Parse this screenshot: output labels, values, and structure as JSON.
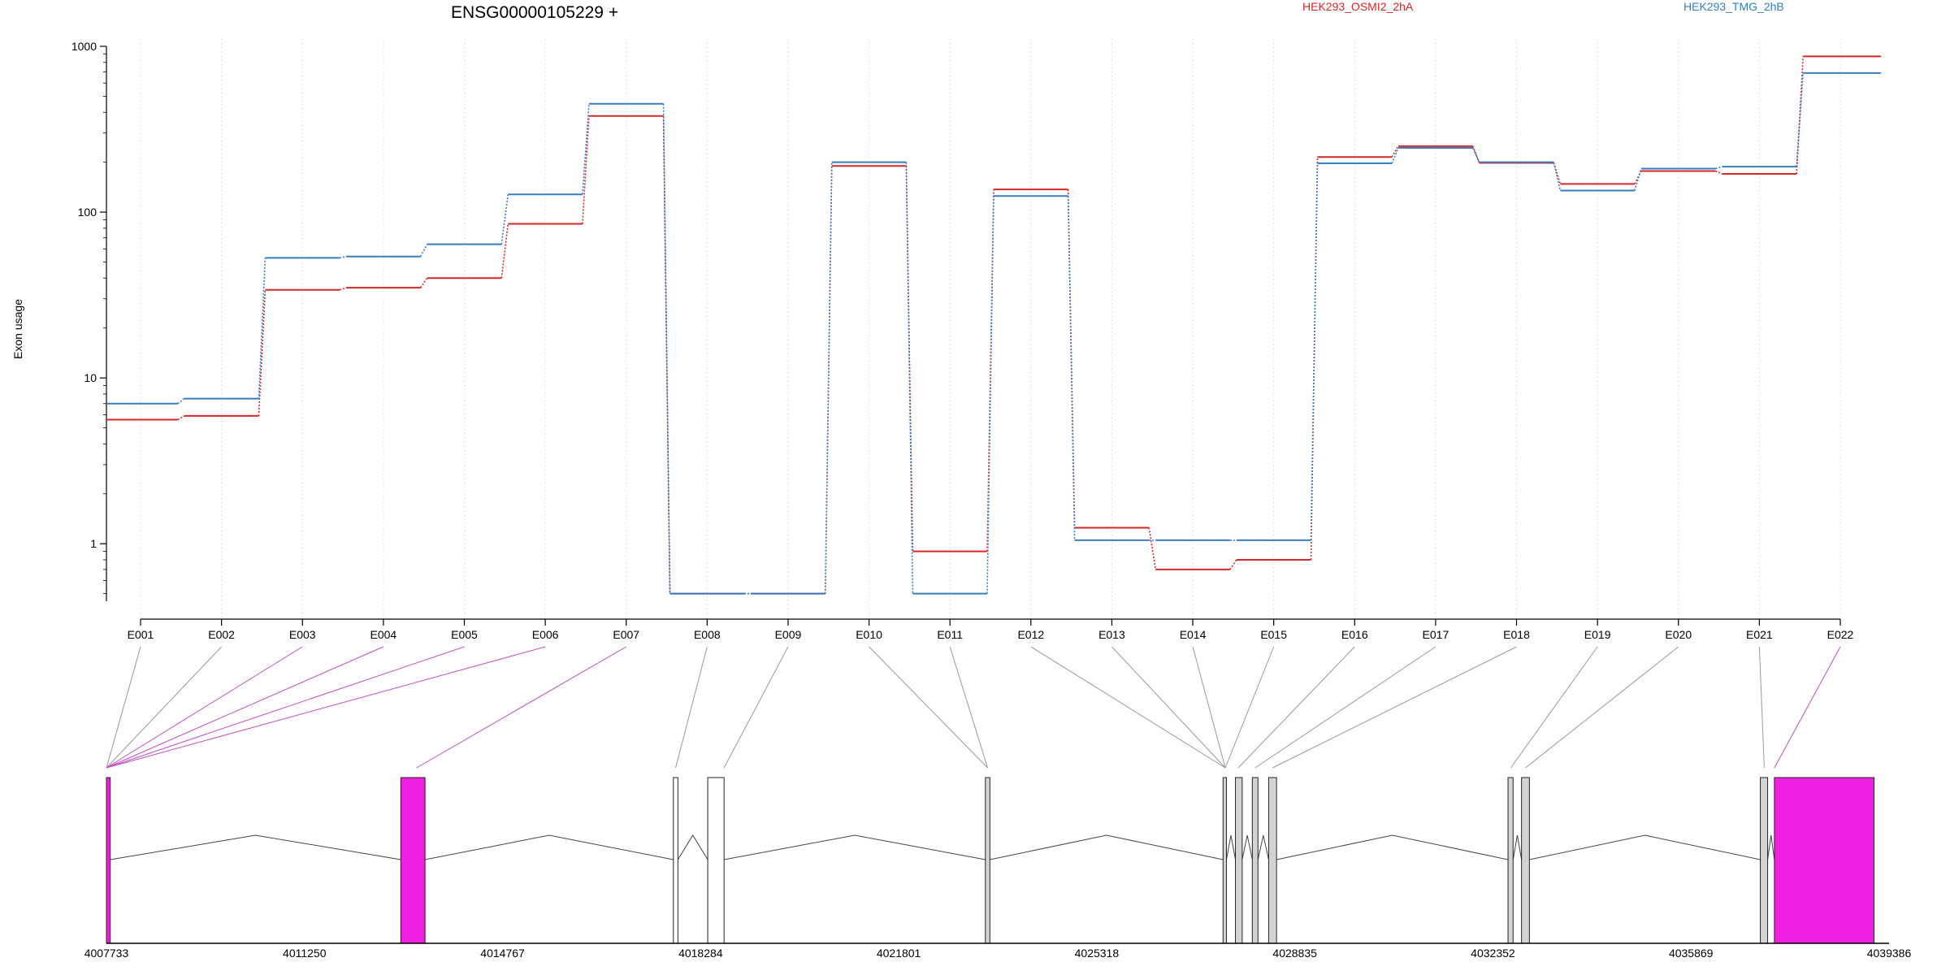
{
  "chart_data": {
    "type": "line",
    "title": "ENSG00000105229 +",
    "ylabel": "Exon usage",
    "yscale": "log",
    "ylim": [
      0.45,
      1000
    ],
    "yticks": [
      1,
      10,
      100,
      1000
    ],
    "ytick_labels": [
      "1",
      "10",
      "100",
      "1000"
    ],
    "grid": "vertical dotted",
    "legend_placement": "top",
    "categories": [
      "E001",
      "E002",
      "E003",
      "E004",
      "E005",
      "E006",
      "E007",
      "E008",
      "E009",
      "E010",
      "E011",
      "E012",
      "E013",
      "E014",
      "E015",
      "E016",
      "E017",
      "E018",
      "E019",
      "E020",
      "E021",
      "E022"
    ],
    "series": [
      {
        "name": "HEK293_OSMI2_2hA",
        "color": "#d62728",
        "values": [
          5.6,
          5.9,
          34,
          35,
          40,
          85,
          380,
          0.5,
          0.5,
          190,
          0.9,
          137,
          1.25,
          0.7,
          0.8,
          215,
          250,
          198,
          148,
          177,
          170,
          870
        ]
      },
      {
        "name": "HEK293_TMG_2hB",
        "color": "#3a7dbe",
        "values": [
          7.0,
          7.5,
          53,
          54,
          64,
          128,
          450,
          0.5,
          0.5,
          200,
          0.5,
          125,
          1.05,
          1.05,
          1.05,
          197,
          244,
          200,
          135,
          183,
          188,
          690
        ]
      }
    ],
    "gene_track": {
      "xlabels": [
        "4007733",
        "4011250",
        "4014767",
        "4018284",
        "4021801",
        "4025318",
        "4028835",
        "4032352",
        "4035869",
        "4039386"
      ],
      "xrange": [
        4007733,
        4039386
      ],
      "exons": [
        {
          "start": 4007733,
          "end": 4007800,
          "color": "#f020e0"
        },
        {
          "start": 4012960,
          "end": 4013390,
          "color": "#f020e0"
        },
        {
          "start": 4017800,
          "end": 4017880,
          "color": "#ffffff"
        },
        {
          "start": 4018410,
          "end": 4018700,
          "color": "#ffffff"
        },
        {
          "start": 4023340,
          "end": 4023420,
          "color": "#d3d3d3"
        },
        {
          "start": 4027560,
          "end": 4027620,
          "color": "#d3d3d3"
        },
        {
          "start": 4027780,
          "end": 4027900,
          "color": "#d3d3d3"
        },
        {
          "start": 4028080,
          "end": 4028180,
          "color": "#d3d3d3"
        },
        {
          "start": 4028370,
          "end": 4028510,
          "color": "#d3d3d3"
        },
        {
          "start": 4032620,
          "end": 4032710,
          "color": "#d3d3d3"
        },
        {
          "start": 4032860,
          "end": 4033000,
          "color": "#d3d3d3"
        },
        {
          "start": 4037100,
          "end": 4037230,
          "color": "#d3d3d3"
        },
        {
          "start": 4037350,
          "end": 4039120,
          "color": "#f020e0"
        }
      ],
      "connector_targets": [
        4007733,
        4007733,
        4007733,
        4007733,
        4007733,
        4007733,
        4013240,
        4017840,
        4018700,
        4023380,
        4023380,
        4027600,
        4027600,
        4027600,
        4027600,
        4027830,
        4028130,
        4028440,
        4032670,
        4032930,
        4037170,
        4037350
      ],
      "connector_colors": [
        "#999999",
        "#999999",
        "#c050c0",
        "#c050c0",
        "#c050c0",
        "#c050c0",
        "#c050c0",
        "#999999",
        "#999999",
        "#999999",
        "#999999",
        "#999999",
        "#999999",
        "#999999",
        "#999999",
        "#999999",
        "#999999",
        "#999999",
        "#999999",
        "#999999",
        "#999999",
        "#c050c0"
      ]
    }
  }
}
